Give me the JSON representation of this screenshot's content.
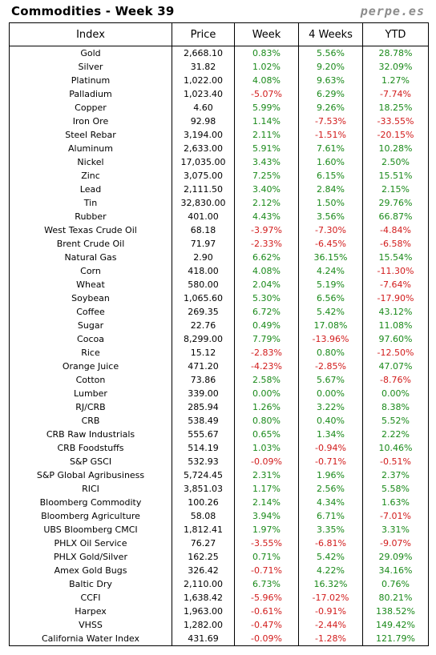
{
  "title": "Commodities - Week 39",
  "brand": "perpe.es",
  "headers": [
    "Index",
    "Price",
    "Week",
    "4 Weeks",
    "YTD"
  ],
  "rows": [
    [
      "Gold",
      "2,668.10",
      "0.83%",
      "5.56%",
      "28.78%"
    ],
    [
      "Silver",
      "31.82",
      "1.02%",
      "9.20%",
      "32.09%"
    ],
    [
      "Platinum",
      "1,022.00",
      "4.08%",
      "9.63%",
      "1.27%"
    ],
    [
      "Palladium",
      "1,023.40",
      "-5.07%",
      "6.29%",
      "-7.74%"
    ],
    [
      "Copper",
      "4.60",
      "5.99%",
      "9.26%",
      "18.25%"
    ],
    [
      "Iron Ore",
      "92.98",
      "1.14%",
      "-7.53%",
      "-33.55%"
    ],
    [
      "Steel Rebar",
      "3,194.00",
      "2.11%",
      "-1.51%",
      "-20.15%"
    ],
    [
      "Aluminum",
      "2,633.00",
      "5.91%",
      "7.61%",
      "10.28%"
    ],
    [
      "Nickel",
      "17,035.00",
      "3.43%",
      "1.60%",
      "2.50%"
    ],
    [
      "Zinc",
      "3,075.00",
      "7.25%",
      "6.15%",
      "15.51%"
    ],
    [
      "Lead",
      "2,111.50",
      "3.40%",
      "2.84%",
      "2.15%"
    ],
    [
      "Tin",
      "32,830.00",
      "2.12%",
      "1.50%",
      "29.76%"
    ],
    [
      "Rubber",
      "401.00",
      "4.43%",
      "3.56%",
      "66.87%"
    ],
    [
      "West Texas Crude Oil",
      "68.18",
      "-3.97%",
      "-7.30%",
      "-4.84%"
    ],
    [
      "Brent Crude Oil",
      "71.97",
      "-2.33%",
      "-6.45%",
      "-6.58%"
    ],
    [
      "Natural Gas",
      "2.90",
      "6.62%",
      "36.15%",
      "15.54%"
    ],
    [
      "Corn",
      "418.00",
      "4.08%",
      "4.24%",
      "-11.30%"
    ],
    [
      "Wheat",
      "580.00",
      "2.04%",
      "5.19%",
      "-7.64%"
    ],
    [
      "Soybean",
      "1,065.60",
      "5.30%",
      "6.56%",
      "-17.90%"
    ],
    [
      "Coffee",
      "269.35",
      "6.72%",
      "5.42%",
      "43.12%"
    ],
    [
      "Sugar",
      "22.76",
      "0.49%",
      "17.08%",
      "11.08%"
    ],
    [
      "Cocoa",
      "8,299.00",
      "7.79%",
      "-13.96%",
      "97.60%"
    ],
    [
      "Rice",
      "15.12",
      "-2.83%",
      "0.80%",
      "-12.50%"
    ],
    [
      "Orange Juice",
      "471.20",
      "-4.23%",
      "-2.85%",
      "47.07%"
    ],
    [
      "Cotton",
      "73.86",
      "2.58%",
      "5.67%",
      "-8.76%"
    ],
    [
      "Lumber",
      "339.00",
      "0.00%",
      "0.00%",
      "0.00%"
    ],
    [
      "RJ/CRB",
      "285.94",
      "1.26%",
      "3.22%",
      "8.38%"
    ],
    [
      "CRB",
      "538.49",
      "0.80%",
      "0.40%",
      "5.52%"
    ],
    [
      "CRB Raw Industrials",
      "555.67",
      "0.65%",
      "1.34%",
      "2.22%"
    ],
    [
      "CRB Foodstuffs",
      "514.19",
      "1.03%",
      "-0.94%",
      "10.46%"
    ],
    [
      "S&P GSCI",
      "532.93",
      "-0.09%",
      "-0.71%",
      "-0.51%"
    ],
    [
      "S&P Global Agribusiness",
      "5,724.45",
      "2.31%",
      "1.96%",
      "2.37%"
    ],
    [
      "RICI",
      "3,851.03",
      "1.17%",
      "2.56%",
      "5.58%"
    ],
    [
      "Bloomberg Commodity",
      "100.26",
      "2.14%",
      "4.34%",
      "1.63%"
    ],
    [
      "Bloomberg Agriculture",
      "58.08",
      "3.94%",
      "6.71%",
      "-7.01%"
    ],
    [
      "UBS Bloomberg CMCI",
      "1,812.41",
      "1.97%",
      "3.35%",
      "3.31%"
    ],
    [
      "PHLX Oil Service",
      "76.27",
      "-3.55%",
      "-6.81%",
      "-9.07%"
    ],
    [
      "PHLX Gold/Silver",
      "162.25",
      "0.71%",
      "5.42%",
      "29.09%"
    ],
    [
      "Amex Gold Bugs",
      "326.42",
      "-0.71%",
      "4.22%",
      "34.16%"
    ],
    [
      "Baltic Dry",
      "2,110.00",
      "6.73%",
      "16.32%",
      "0.76%"
    ],
    [
      "CCFI",
      "1,638.42",
      "-5.96%",
      "-17.02%",
      "80.21%"
    ],
    [
      "Harpex",
      "1,963.00",
      "-0.61%",
      "-0.91%",
      "138.52%"
    ],
    [
      "VHSS",
      "1,282.00",
      "-0.47%",
      "-2.44%",
      "149.42%"
    ],
    [
      "California Water Index",
      "431.69",
      "-0.09%",
      "-1.28%",
      "121.79%"
    ]
  ],
  "colors": {
    "positive": "#1a8a1a",
    "negative": "#d21c1c",
    "brand": "#8c8c8c"
  }
}
